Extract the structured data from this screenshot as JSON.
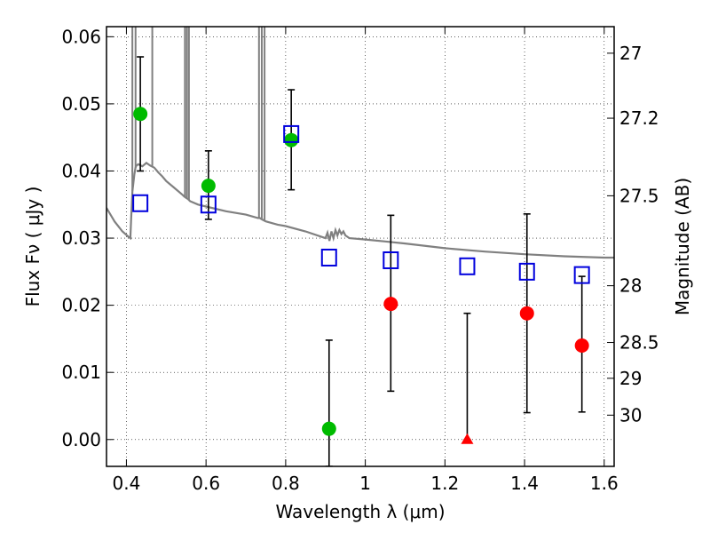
{
  "chart_data": {
    "type": "scatter",
    "xlabel": "Wavelength  λ (μm)",
    "ylabel": "Flux  Fν  ( μJy )",
    "y2label": "Magnitude (AB)",
    "xlim": [
      0.35,
      1.625
    ],
    "ylim": [
      -0.004,
      0.0615
    ],
    "grid": true,
    "x_ticks": [
      0.4,
      0.6,
      0.8,
      1.0,
      1.2,
      1.4,
      1.6
    ],
    "x_tick_labels": [
      "0.4",
      "0.6",
      "0.8",
      "1",
      "1.2",
      "1.4",
      "1.6"
    ],
    "y_ticks": [
      0.0,
      0.01,
      0.02,
      0.03,
      0.04,
      0.05,
      0.06
    ],
    "y_tick_labels": [
      "0.00",
      "0.01",
      "0.02",
      "0.03",
      "0.04",
      "0.05",
      "0.06"
    ],
    "mag_ticks": [
      27,
      27.2,
      27.5,
      28,
      28.5,
      29,
      30
    ],
    "mag_tick_labels": [
      "27",
      "27.2",
      "27.5",
      "28",
      "28.5",
      "29",
      "30"
    ],
    "colors": {
      "detection": "#00bb00",
      "upper_limit": "#ff0000",
      "model_photometry": "#0000dd",
      "sed_model": "#808080",
      "errorbar": "#000000"
    },
    "series": [
      {
        "kind": "detection",
        "marker": "circle",
        "points": [
          {
            "x": 0.435,
            "y": 0.0485,
            "ylow": 0.04,
            "yhigh": 0.057
          },
          {
            "x": 0.606,
            "y": 0.0378,
            "ylow": 0.0328,
            "yhigh": 0.043
          },
          {
            "x": 0.814,
            "y": 0.0446,
            "ylow": 0.0372,
            "yhigh": 0.0521
          },
          {
            "x": 0.909,
            "y": 0.0016,
            "ylow": -0.004,
            "yhigh": 0.0148
          }
        ]
      },
      {
        "kind": "upper_limit",
        "marker": "circle",
        "points": [
          {
            "x": 1.064,
            "y": 0.0202,
            "ylow": 0.0072,
            "yhigh": 0.0334
          },
          {
            "x": 1.406,
            "y": 0.0188,
            "ylow": 0.004,
            "yhigh": 0.0336
          },
          {
            "x": 1.544,
            "y": 0.014,
            "ylow": 0.0041,
            "yhigh": 0.0243
          }
        ]
      },
      {
        "kind": "upper_limit",
        "marker": "triangle",
        "points": [
          {
            "x": 1.256,
            "y": 0.0,
            "ylow": 0.0,
            "yhigh": 0.0188
          }
        ]
      },
      {
        "kind": "model_photometry",
        "marker": "open-square",
        "points": [
          {
            "x": 0.435,
            "y": 0.0352
          },
          {
            "x": 0.606,
            "y": 0.035
          },
          {
            "x": 0.814,
            "y": 0.0455
          },
          {
            "x": 0.909,
            "y": 0.0271
          },
          {
            "x": 1.064,
            "y": 0.0267
          },
          {
            "x": 1.256,
            "y": 0.0258
          },
          {
            "x": 1.406,
            "y": 0.025
          },
          {
            "x": 1.544,
            "y": 0.0245
          }
        ]
      },
      {
        "kind": "sed_model",
        "marker": "line",
        "x": [
          0.35,
          0.37,
          0.39,
          0.405,
          0.41,
          0.412,
          0.415,
          0.42,
          0.423,
          0.425,
          0.43,
          0.44,
          0.45,
          0.46,
          0.47,
          0.48,
          0.49,
          0.5,
          0.52,
          0.54,
          0.545,
          0.55,
          0.555,
          0.56,
          0.58,
          0.6,
          0.65,
          0.7,
          0.73,
          0.735,
          0.74,
          0.75,
          0.78,
          0.8,
          0.85,
          0.9,
          0.905,
          0.91,
          0.915,
          0.92,
          0.925,
          0.93,
          0.935,
          0.94,
          0.945,
          0.95,
          0.96,
          1.0,
          1.05,
          1.1,
          1.2,
          1.3,
          1.4,
          1.5,
          1.6,
          1.625
        ],
        "y": [
          0.0345,
          0.0325,
          0.031,
          0.0302,
          0.03,
          0.033,
          0.037,
          0.0395,
          0.0405,
          0.0408,
          0.041,
          0.0407,
          0.0412,
          0.0408,
          0.0405,
          0.0398,
          0.0392,
          0.0385,
          0.0375,
          0.0365,
          0.0362,
          0.036,
          0.0358,
          0.0355,
          0.035,
          0.0347,
          0.034,
          0.0335,
          0.033,
          0.033,
          0.0328,
          0.0325,
          0.032,
          0.0318,
          0.031,
          0.03,
          0.0308,
          0.0296,
          0.031,
          0.03,
          0.0312,
          0.0304,
          0.0312,
          0.0306,
          0.031,
          0.0304,
          0.03,
          0.0298,
          0.0295,
          0.0292,
          0.0285,
          0.028,
          0.0276,
          0.0273,
          0.0271,
          0.0271
        ],
        "spikes": [
          {
            "x": 0.415,
            "top": 0.0615
          },
          {
            "x": 0.423,
            "top": 0.0615
          },
          {
            "x": 0.465,
            "top": 0.0615
          },
          {
            "x": 0.547,
            "top": 0.0615
          },
          {
            "x": 0.552,
            "top": 0.0615
          },
          {
            "x": 0.557,
            "top": 0.0615
          },
          {
            "x": 0.733,
            "top": 0.0615
          },
          {
            "x": 0.74,
            "top": 0.0615
          },
          {
            "x": 0.747,
            "top": 0.0615
          }
        ]
      }
    ]
  }
}
